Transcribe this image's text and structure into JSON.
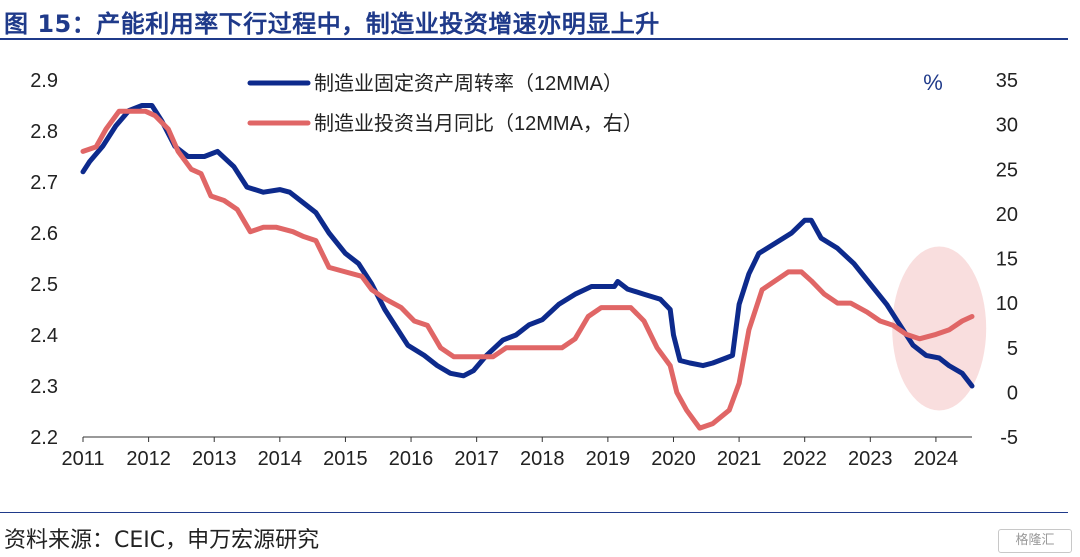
{
  "title": "图 15：产能利用率下行过程中，制造业投资增速亦明显上升",
  "source": "资料来源：CEIC，申万宏源研究",
  "watermark": "格隆汇",
  "colors": {
    "title": "#1f3a8a",
    "series1": "#0d2a8c",
    "series2": "#e06666",
    "highlight": "#f4c2c2"
  },
  "chart_data": {
    "type": "line",
    "x_ticks": [
      "2011",
      "2012",
      "2013",
      "2014",
      "2015",
      "2016",
      "2017",
      "2018",
      "2019",
      "2020",
      "2021",
      "2022",
      "2023",
      "2024"
    ],
    "left_axis": {
      "ticks": [
        "2.9",
        "2.8",
        "2.7",
        "2.6",
        "2.5",
        "2.4",
        "2.3",
        "2.2"
      ],
      "ylim": [
        2.2,
        2.9
      ]
    },
    "right_axis": {
      "unit": "%",
      "ticks": [
        "35",
        "30",
        "25",
        "20",
        "15",
        "10",
        "5",
        "0",
        "-5"
      ],
      "ylim": [
        -5,
        35
      ]
    },
    "legend_position": "top-center",
    "series": [
      {
        "name": "制造业固定资产周转率（12MMA）",
        "axis": "left",
        "color": "#0d2a8c",
        "points": [
          [
            2011.0,
            2.72
          ],
          [
            2011.1,
            2.74
          ],
          [
            2011.3,
            2.77
          ],
          [
            2011.5,
            2.81
          ],
          [
            2011.7,
            2.84
          ],
          [
            2011.9,
            2.85
          ],
          [
            2012.05,
            2.85
          ],
          [
            2012.2,
            2.82
          ],
          [
            2012.4,
            2.77
          ],
          [
            2012.6,
            2.75
          ],
          [
            2012.85,
            2.75
          ],
          [
            2013.05,
            2.76
          ],
          [
            2013.3,
            2.73
          ],
          [
            2013.5,
            2.69
          ],
          [
            2013.75,
            2.68
          ],
          [
            2014.0,
            2.685
          ],
          [
            2014.15,
            2.68
          ],
          [
            2014.35,
            2.66
          ],
          [
            2014.55,
            2.64
          ],
          [
            2014.75,
            2.6
          ],
          [
            2015.0,
            2.56
          ],
          [
            2015.2,
            2.54
          ],
          [
            2015.4,
            2.5
          ],
          [
            2015.6,
            2.45
          ],
          [
            2015.8,
            2.41
          ],
          [
            2015.95,
            2.38
          ],
          [
            2016.2,
            2.36
          ],
          [
            2016.4,
            2.34
          ],
          [
            2016.6,
            2.325
          ],
          [
            2016.8,
            2.32
          ],
          [
            2016.95,
            2.33
          ],
          [
            2017.15,
            2.36
          ],
          [
            2017.4,
            2.39
          ],
          [
            2017.6,
            2.4
          ],
          [
            2017.8,
            2.42
          ],
          [
            2018.0,
            2.43
          ],
          [
            2018.25,
            2.46
          ],
          [
            2018.5,
            2.48
          ],
          [
            2018.75,
            2.495
          ],
          [
            2018.95,
            2.495
          ],
          [
            2019.1,
            2.495
          ],
          [
            2019.15,
            2.505
          ],
          [
            2019.3,
            2.49
          ],
          [
            2019.55,
            2.48
          ],
          [
            2019.8,
            2.47
          ],
          [
            2019.95,
            2.45
          ],
          [
            2020.0,
            2.4
          ],
          [
            2020.1,
            2.35
          ],
          [
            2020.25,
            2.345
          ],
          [
            2020.45,
            2.34
          ],
          [
            2020.6,
            2.345
          ],
          [
            2020.8,
            2.355
          ],
          [
            2020.9,
            2.36
          ],
          [
            2021.0,
            2.46
          ],
          [
            2021.15,
            2.52
          ],
          [
            2021.3,
            2.56
          ],
          [
            2021.55,
            2.58
          ],
          [
            2021.8,
            2.6
          ],
          [
            2022.0,
            2.625
          ],
          [
            2022.1,
            2.625
          ],
          [
            2022.25,
            2.59
          ],
          [
            2022.5,
            2.57
          ],
          [
            2022.75,
            2.54
          ],
          [
            2023.0,
            2.5
          ],
          [
            2023.25,
            2.46
          ],
          [
            2023.45,
            2.42
          ],
          [
            2023.65,
            2.38
          ],
          [
            2023.85,
            2.36
          ],
          [
            2024.05,
            2.355
          ],
          [
            2024.2,
            2.34
          ],
          [
            2024.4,
            2.325
          ],
          [
            2024.55,
            2.3
          ]
        ]
      },
      {
        "name": "制造业投资当月同比（12MMA，右）",
        "axis": "right",
        "color": "#e06666",
        "points": [
          [
            2011.0,
            27
          ],
          [
            2011.2,
            27.5
          ],
          [
            2011.35,
            29.5
          ],
          [
            2011.55,
            31.5
          ],
          [
            2011.75,
            31.5
          ],
          [
            2011.95,
            31.5
          ],
          [
            2012.1,
            31
          ],
          [
            2012.3,
            29.5
          ],
          [
            2012.45,
            27
          ],
          [
            2012.65,
            25
          ],
          [
            2012.8,
            24.5
          ],
          [
            2012.95,
            22
          ],
          [
            2013.15,
            21.5
          ],
          [
            2013.35,
            20.5
          ],
          [
            2013.55,
            18
          ],
          [
            2013.75,
            18.5
          ],
          [
            2013.95,
            18.5
          ],
          [
            2014.2,
            18
          ],
          [
            2014.35,
            17.5
          ],
          [
            2014.55,
            17
          ],
          [
            2014.75,
            14
          ],
          [
            2015.0,
            13.5
          ],
          [
            2015.25,
            13
          ],
          [
            2015.4,
            11.5
          ],
          [
            2015.6,
            10.5
          ],
          [
            2015.85,
            9.5
          ],
          [
            2016.05,
            8
          ],
          [
            2016.25,
            7.5
          ],
          [
            2016.45,
            5
          ],
          [
            2016.65,
            4
          ],
          [
            2016.85,
            4
          ],
          [
            2017.05,
            4
          ],
          [
            2017.25,
            4
          ],
          [
            2017.45,
            5
          ],
          [
            2017.65,
            5
          ],
          [
            2017.85,
            5
          ],
          [
            2018.05,
            5
          ],
          [
            2018.3,
            5
          ],
          [
            2018.5,
            6
          ],
          [
            2018.7,
            8.5
          ],
          [
            2018.9,
            9.5
          ],
          [
            2019.15,
            9.5
          ],
          [
            2019.35,
            9.5
          ],
          [
            2019.55,
            8
          ],
          [
            2019.75,
            5
          ],
          [
            2019.95,
            3
          ],
          [
            2020.05,
            0
          ],
          [
            2020.2,
            -2
          ],
          [
            2020.4,
            -4
          ],
          [
            2020.6,
            -3.5
          ],
          [
            2020.85,
            -2
          ],
          [
            2021.0,
            1
          ],
          [
            2021.15,
            7
          ],
          [
            2021.35,
            11.5
          ],
          [
            2021.55,
            12.5
          ],
          [
            2021.75,
            13.5
          ],
          [
            2021.95,
            13.5
          ],
          [
            2022.1,
            12.5
          ],
          [
            2022.3,
            11
          ],
          [
            2022.5,
            10
          ],
          [
            2022.7,
            10
          ],
          [
            2022.95,
            9
          ],
          [
            2023.15,
            8
          ],
          [
            2023.35,
            7.5
          ],
          [
            2023.55,
            6.5
          ],
          [
            2023.75,
            6
          ],
          [
            2024.0,
            6.5
          ],
          [
            2024.2,
            7
          ],
          [
            2024.4,
            8
          ],
          [
            2024.55,
            8.5
          ]
        ]
      }
    ]
  }
}
